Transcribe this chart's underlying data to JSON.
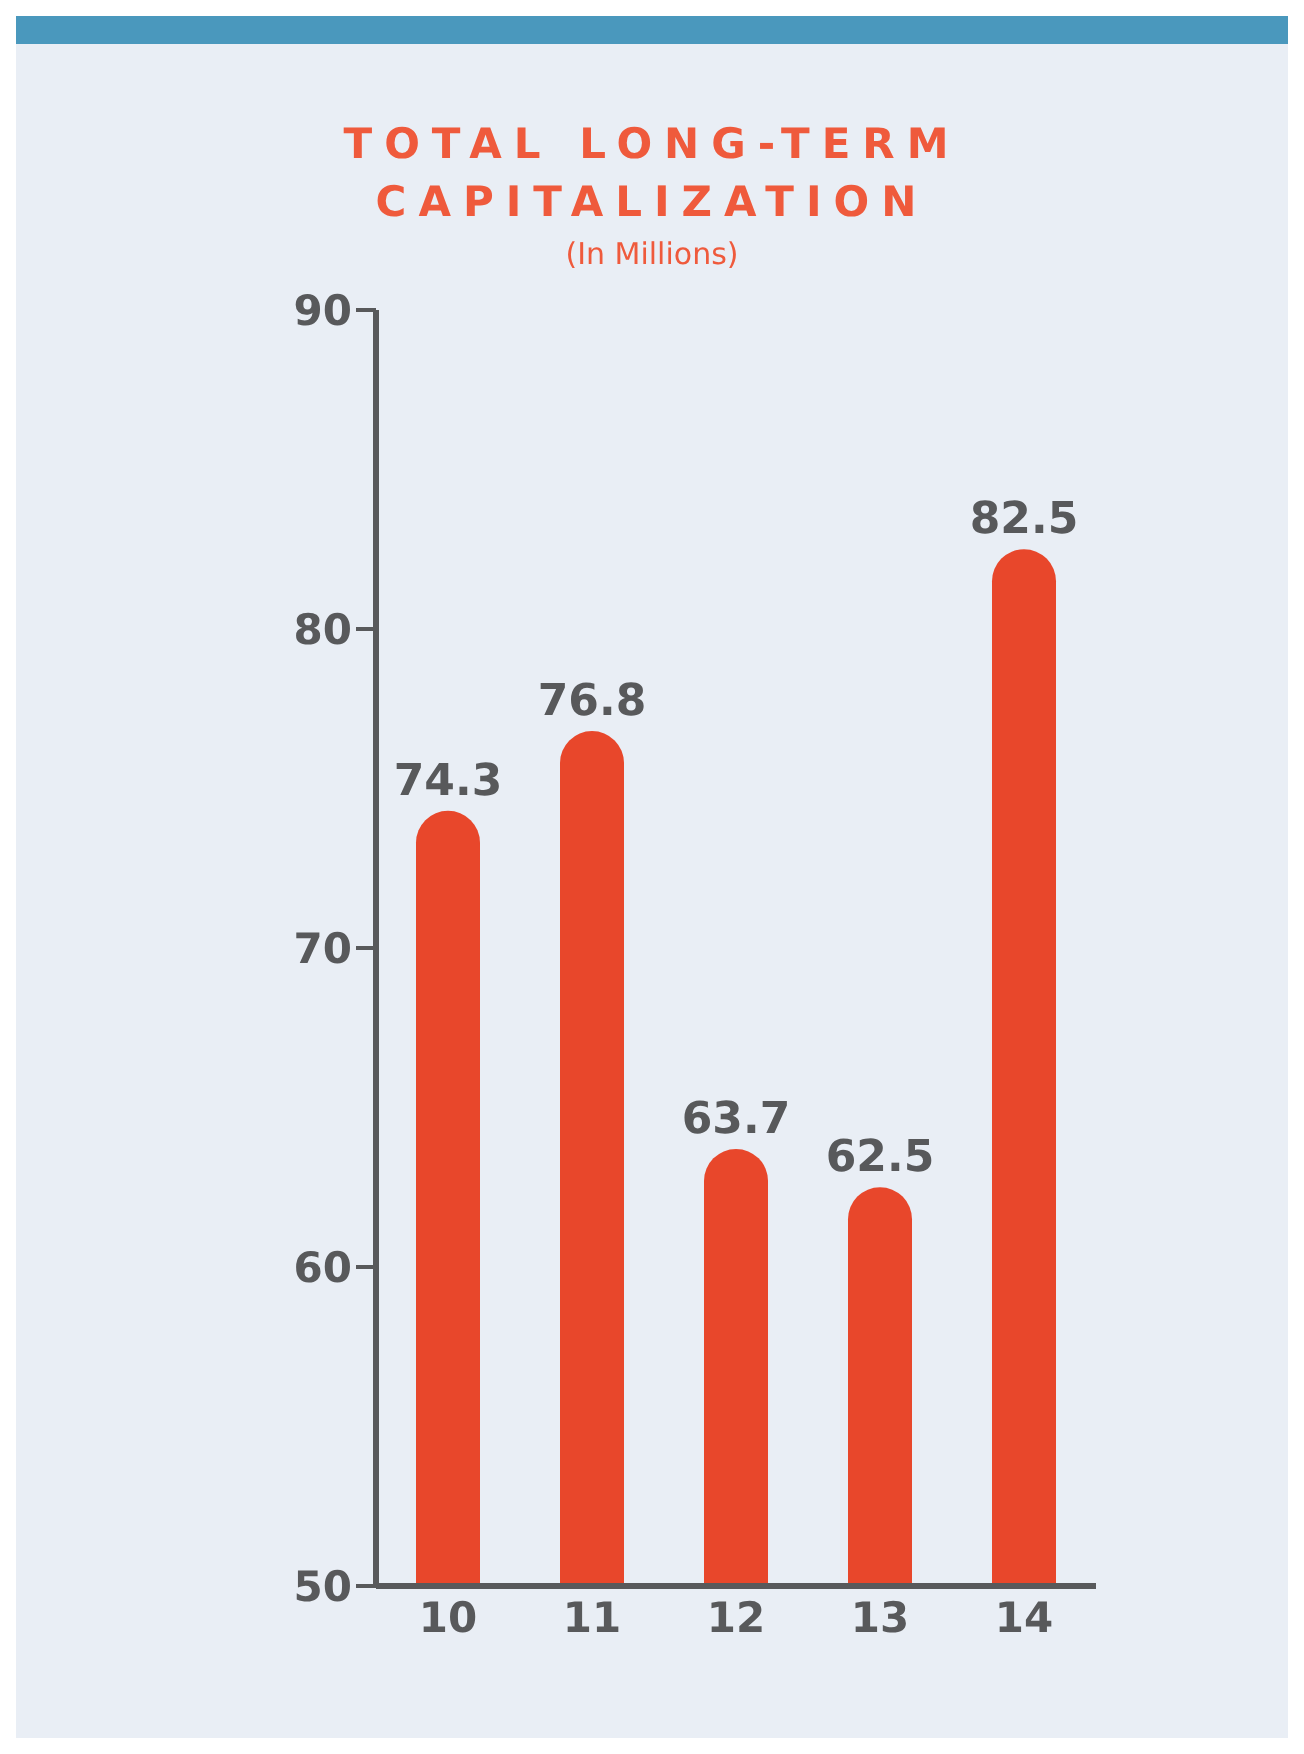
{
  "chart_data": {
    "type": "bar",
    "title": "TOTAL LONG-TERM CAPITALIZATION",
    "subtitle": "(In Millions)",
    "categories": [
      "10",
      "11",
      "12",
      "13",
      "14"
    ],
    "values": [
      74.3,
      76.8,
      63.7,
      62.5,
      82.5
    ],
    "color": "#e8472b",
    "ylim": [
      50,
      90
    ],
    "yticks": [
      50,
      60,
      70,
      80,
      90
    ],
    "data_labels": true
  }
}
